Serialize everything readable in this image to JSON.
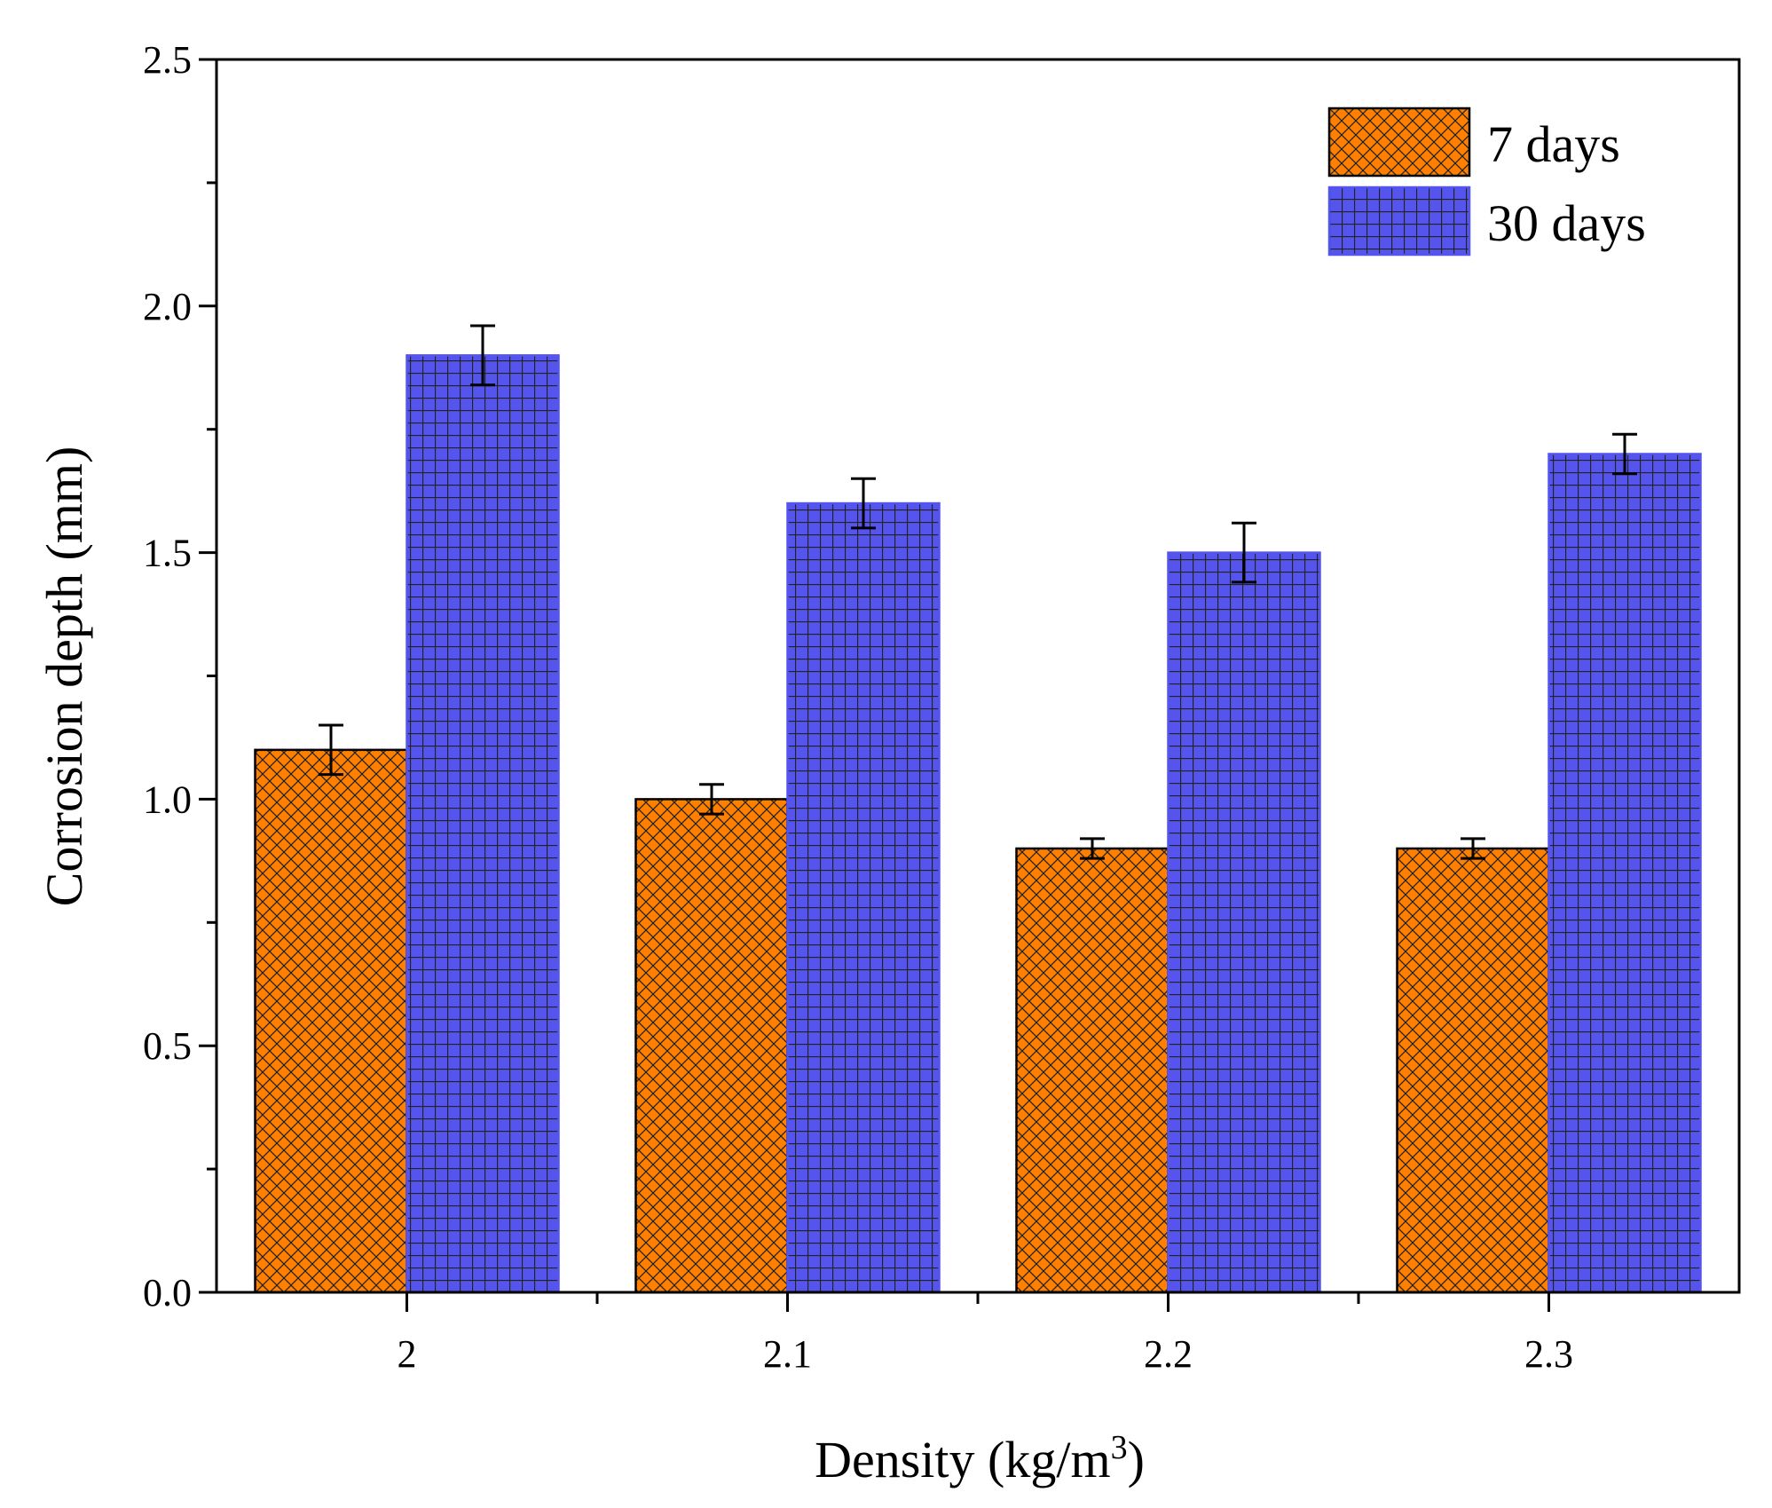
{
  "chart_data": {
    "type": "bar",
    "title": "",
    "xlabel": "Density (kg/m",
    "xlabel_sup": "3",
    "xlabel_close": ")",
    "ylabel": "Corrosion depth (mm)",
    "categories": [
      "2",
      "2.1",
      "2.2",
      "2.3"
    ],
    "ylim": [
      0,
      2.5
    ],
    "yticks": [
      "0.0",
      "0.5",
      "1.0",
      "1.5",
      "2.0",
      "2.5"
    ],
    "grid": false,
    "legend_position": "top-right",
    "series": [
      {
        "name": "7 days",
        "values": [
          1.1,
          1.0,
          0.9,
          0.9
        ],
        "errors": [
          0.05,
          0.03,
          0.02,
          0.02
        ],
        "color": "#ff8000",
        "pattern": "crosshatch-diagonal"
      },
      {
        "name": "30 days",
        "values": [
          1.9,
          1.6,
          1.5,
          1.7
        ],
        "errors": [
          0.06,
          0.05,
          0.06,
          0.04
        ],
        "color": "#5555ee",
        "pattern": "grid"
      }
    ]
  }
}
